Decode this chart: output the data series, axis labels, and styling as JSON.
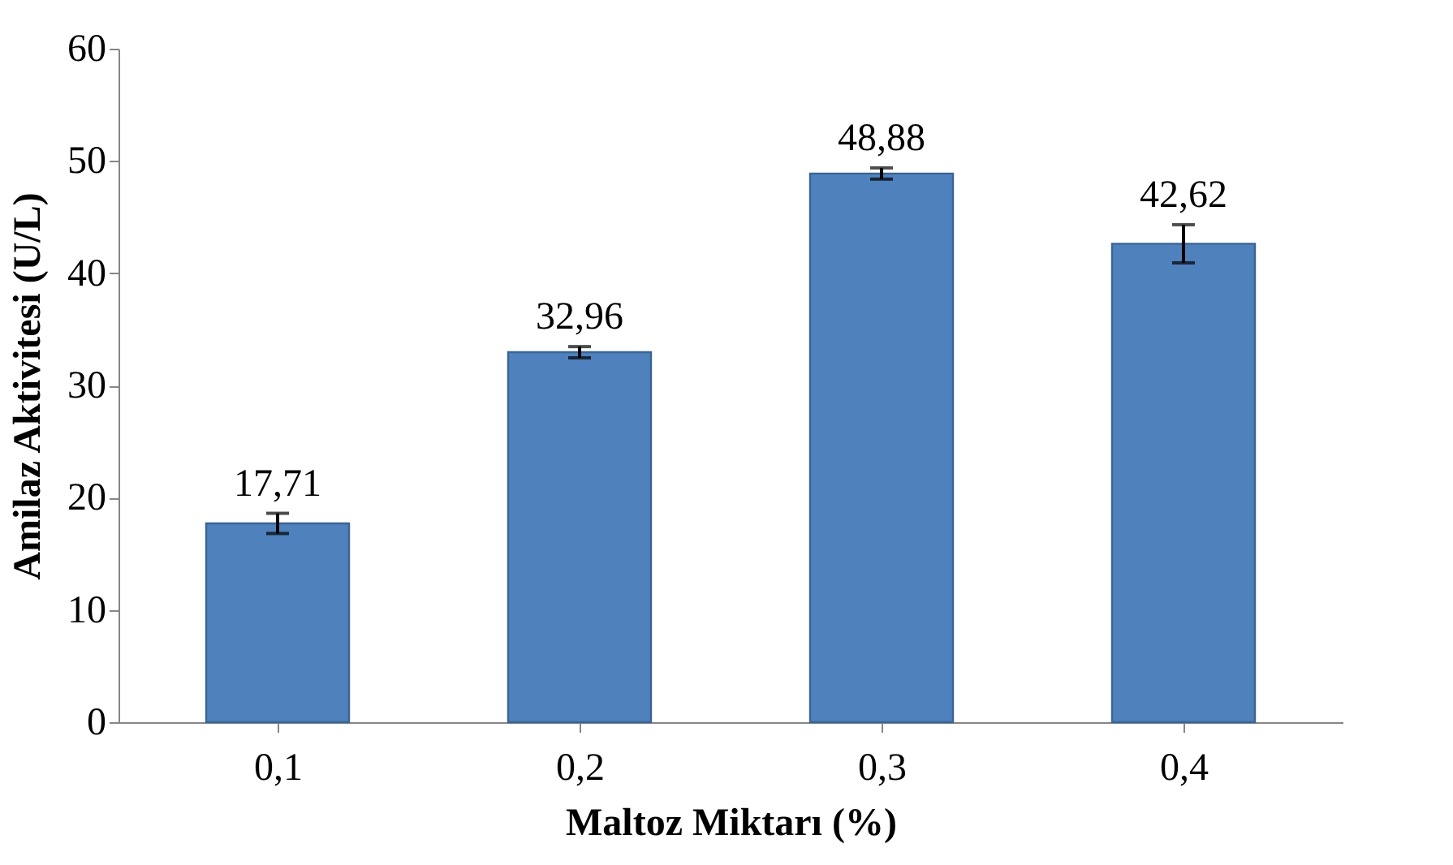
{
  "chart_data": {
    "type": "bar",
    "xlabel": "Maltoz Miktarı (%)",
    "ylabel": "Amilaz Aktivitesi (U/L)",
    "categories": [
      "0,1",
      "0,2",
      "0,3",
      "0,4"
    ],
    "values": [
      17.71,
      32.96,
      48.88,
      42.62
    ],
    "value_labels": [
      "17,71",
      "32,96",
      "48,88",
      "42,62"
    ],
    "errors": [
      0.9,
      0.5,
      0.5,
      1.7
    ],
    "color": "#4f81bd",
    "ylim": [
      0,
      60
    ],
    "yticks": [
      0,
      10,
      20,
      30,
      40,
      50,
      60
    ],
    "grid": false
  }
}
